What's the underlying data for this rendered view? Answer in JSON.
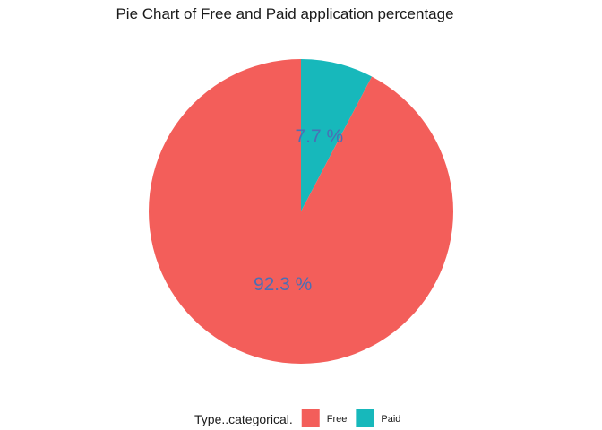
{
  "chart_data": {
    "type": "pie",
    "title": "Pie Chart of Free and Paid application percentage",
    "legend_title": "Type..categorical.",
    "legend_position": "bottom",
    "label_color": "#4a6fb5",
    "slices": [
      {
        "name": "Free",
        "value": 92.3,
        "label": "92.3 %",
        "color": "#f35e5a"
      },
      {
        "name": "Paid",
        "value": 7.7,
        "label": "7.7 %",
        "color": "#17b8bb"
      }
    ]
  }
}
